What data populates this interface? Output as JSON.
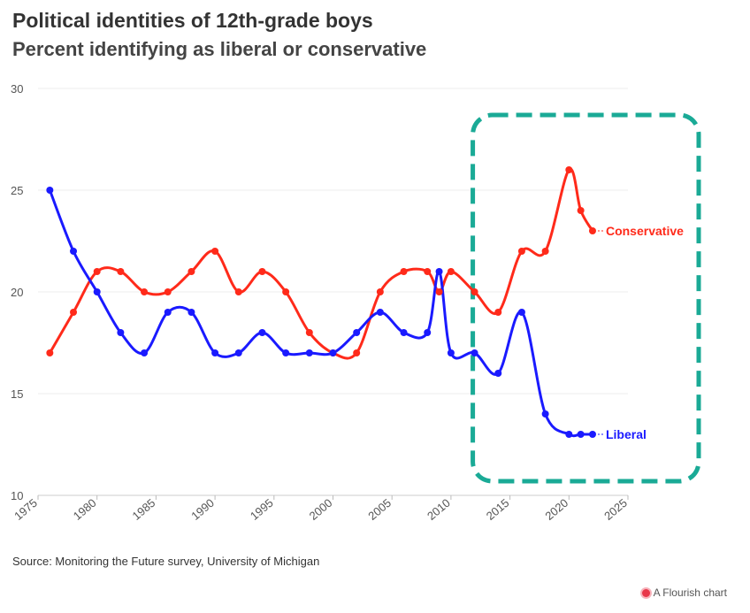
{
  "chart_data": {
    "type": "line",
    "title": "Political identities of 12th-grade boys",
    "subtitle": "Percent identifying as liberal or conservative",
    "xlim": [
      1975,
      2025
    ],
    "ylim": [
      10,
      30
    ],
    "x_ticks": [
      1975,
      1980,
      1985,
      1990,
      1995,
      2000,
      2005,
      2010,
      2015,
      2020,
      2025
    ],
    "y_ticks": [
      10,
      15,
      20,
      25,
      30
    ],
    "grid": "horizontal",
    "series": [
      {
        "name": "Conservative",
        "color": "#ff2a1a",
        "x": [
          1976,
          1978,
          1980,
          1982,
          1984,
          1986,
          1988,
          1990,
          1992,
          1994,
          1996,
          1998,
          2000,
          2002,
          2004,
          2006,
          2008,
          2009,
          2010,
          2012,
          2014,
          2016,
          2018,
          2020,
          2021,
          2022
        ],
        "y": [
          17,
          19,
          21,
          21,
          20,
          20,
          21,
          22,
          20,
          21,
          20,
          18,
          17,
          17,
          20,
          21,
          21,
          20,
          21,
          20,
          19,
          22,
          22,
          26,
          24,
          23
        ]
      },
      {
        "name": "Liberal",
        "color": "#1a1aff",
        "x": [
          1976,
          1978,
          1980,
          1982,
          1984,
          1986,
          1988,
          1990,
          1992,
          1994,
          1996,
          1998,
          2000,
          2002,
          2004,
          2006,
          2008,
          2009,
          2010,
          2012,
          2014,
          2016,
          2018,
          2020,
          2021,
          2022
        ],
        "y": [
          25,
          22,
          20,
          18,
          17,
          19,
          19,
          17,
          17,
          18,
          17,
          17,
          17,
          18,
          19,
          18,
          18,
          21,
          17,
          17,
          16,
          19,
          14,
          13,
          13,
          13
        ]
      }
    ],
    "annotation": {
      "type": "dashed-box",
      "color": "#1aaa96",
      "x_from": 2012,
      "x_to": 2025
    }
  },
  "source_text": "Source: Monitoring the Future survey, University of Michigan",
  "credit_text": "A Flourish chart"
}
